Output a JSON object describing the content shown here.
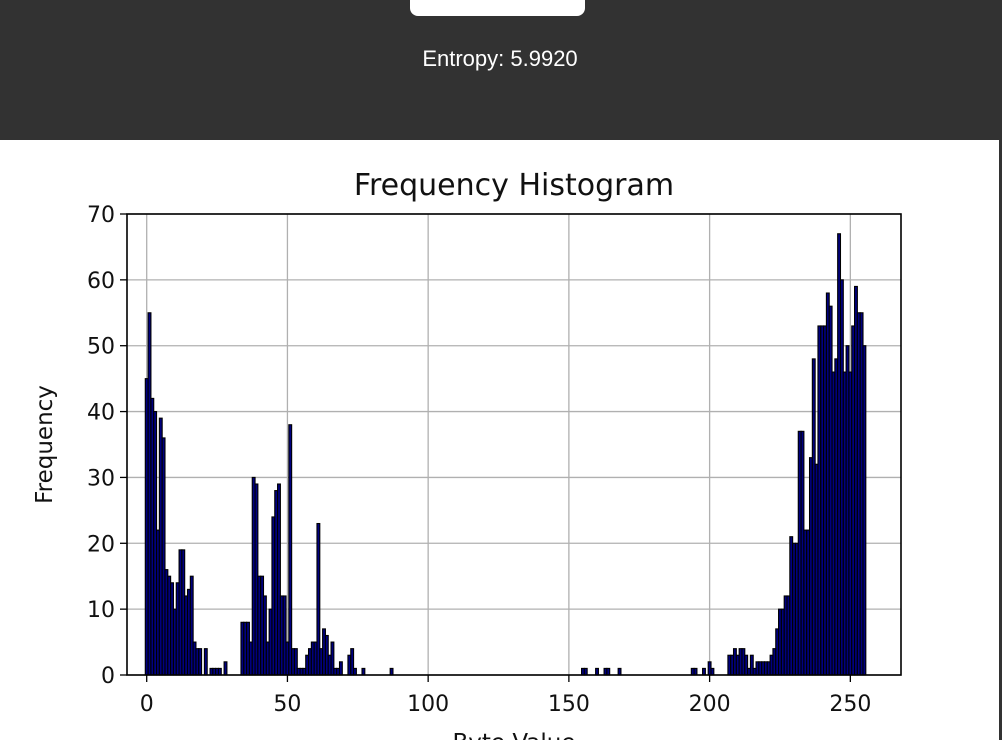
{
  "header": {
    "entropy_label": "Entropy: 5.9920"
  },
  "chart_data": {
    "type": "bar",
    "title": "Frequency Histogram",
    "xlabel": "Byte Value",
    "ylabel": "Frequency",
    "xlim": [
      -7,
      268
    ],
    "ylim": [
      0,
      70
    ],
    "xticks": [
      0,
      50,
      100,
      150,
      200,
      250
    ],
    "yticks": [
      0,
      10,
      20,
      30,
      40,
      50,
      60,
      70
    ],
    "grid": true,
    "bar_fill": "#000080",
    "bar_edge": "#000000",
    "bins": [
      [
        0,
        45
      ],
      [
        1,
        55
      ],
      [
        2,
        42
      ],
      [
        3,
        40
      ],
      [
        4,
        22
      ],
      [
        5,
        39
      ],
      [
        6,
        36
      ],
      [
        7,
        16
      ],
      [
        8,
        15
      ],
      [
        9,
        14
      ],
      [
        10,
        10
      ],
      [
        11,
        14
      ],
      [
        12,
        19
      ],
      [
        13,
        19
      ],
      [
        14,
        12
      ],
      [
        15,
        13
      ],
      [
        16,
        15
      ],
      [
        17,
        5
      ],
      [
        18,
        4
      ],
      [
        19,
        4
      ],
      [
        21,
        4
      ],
      [
        23,
        1
      ],
      [
        24,
        1
      ],
      [
        25,
        1
      ],
      [
        26,
        1
      ],
      [
        28,
        2
      ],
      [
        34,
        8
      ],
      [
        35,
        8
      ],
      [
        36,
        8
      ],
      [
        37,
        5
      ],
      [
        38,
        30
      ],
      [
        39,
        29
      ],
      [
        40,
        15
      ],
      [
        41,
        15
      ],
      [
        42,
        12
      ],
      [
        43,
        5
      ],
      [
        44,
        10
      ],
      [
        45,
        24
      ],
      [
        46,
        28
      ],
      [
        47,
        29
      ],
      [
        48,
        12
      ],
      [
        49,
        12
      ],
      [
        50,
        5
      ],
      [
        51,
        38
      ],
      [
        52,
        4
      ],
      [
        53,
        4
      ],
      [
        54,
        1
      ],
      [
        55,
        1
      ],
      [
        56,
        1
      ],
      [
        57,
        3
      ],
      [
        58,
        4
      ],
      [
        59,
        5
      ],
      [
        60,
        5
      ],
      [
        61,
        23
      ],
      [
        62,
        4
      ],
      [
        63,
        7
      ],
      [
        64,
        6
      ],
      [
        65,
        3
      ],
      [
        66,
        5
      ],
      [
        67,
        1
      ],
      [
        68,
        1
      ],
      [
        69,
        2
      ],
      [
        72,
        3
      ],
      [
        73,
        4
      ],
      [
        74,
        1
      ],
      [
        77,
        1
      ],
      [
        87,
        1
      ],
      [
        155,
        1
      ],
      [
        156,
        1
      ],
      [
        160,
        1
      ],
      [
        163,
        1
      ],
      [
        164,
        1
      ],
      [
        168,
        1
      ],
      [
        194,
        1
      ],
      [
        195,
        1
      ],
      [
        198,
        1
      ],
      [
        200,
        2
      ],
      [
        201,
        1
      ],
      [
        207,
        3
      ],
      [
        208,
        3
      ],
      [
        209,
        4
      ],
      [
        210,
        3
      ],
      [
        211,
        4
      ],
      [
        212,
        4
      ],
      [
        213,
        3
      ],
      [
        214,
        1
      ],
      [
        215,
        3
      ],
      [
        216,
        1
      ],
      [
        217,
        2
      ],
      [
        218,
        2
      ],
      [
        219,
        2
      ],
      [
        220,
        2
      ],
      [
        221,
        2
      ],
      [
        222,
        3
      ],
      [
        223,
        4
      ],
      [
        224,
        7
      ],
      [
        225,
        10
      ],
      [
        226,
        10
      ],
      [
        227,
        12
      ],
      [
        228,
        12
      ],
      [
        229,
        21
      ],
      [
        230,
        20
      ],
      [
        231,
        20
      ],
      [
        232,
        37
      ],
      [
        233,
        37
      ],
      [
        234,
        22
      ],
      [
        235,
        22
      ],
      [
        236,
        33
      ],
      [
        237,
        48
      ],
      [
        238,
        32
      ],
      [
        239,
        53
      ],
      [
        240,
        53
      ],
      [
        241,
        53
      ],
      [
        242,
        58
      ],
      [
        243,
        56
      ],
      [
        244,
        46
      ],
      [
        245,
        48
      ],
      [
        246,
        67
      ],
      [
        247,
        60
      ],
      [
        248,
        46
      ],
      [
        249,
        50
      ],
      [
        250,
        46
      ],
      [
        251,
        53
      ],
      [
        252,
        59
      ],
      [
        253,
        55
      ],
      [
        254,
        55
      ],
      [
        255,
        50
      ]
    ]
  }
}
